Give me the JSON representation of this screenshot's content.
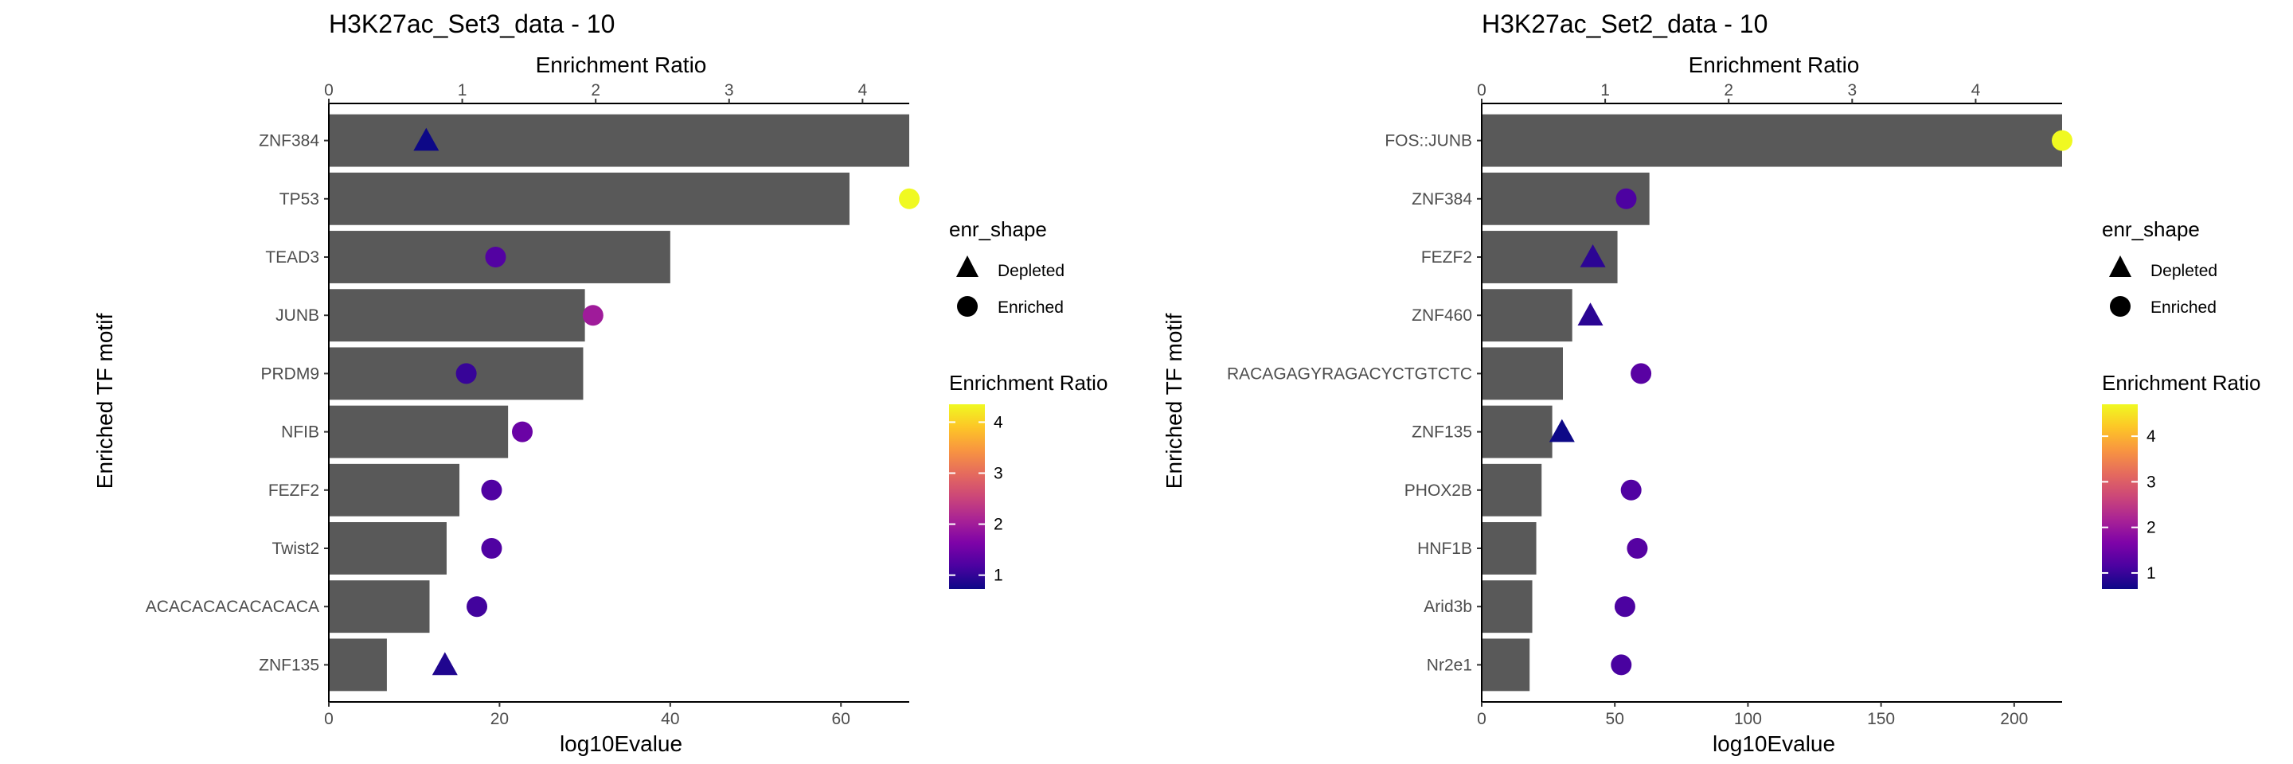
{
  "chart_data": [
    {
      "type": "bar",
      "title": "H3K27ac_Set3_data - 10",
      "xlabel": "log10Evalue",
      "ylabel": "Enriched TF motif",
      "top_xlabel": "Enrichment Ratio",
      "xlim": [
        0,
        68
      ],
      "xticks": [
        0,
        20,
        40,
        60
      ],
      "top_xlim": [
        0,
        4.35
      ],
      "top_xticks": [
        0,
        1,
        2,
        3,
        4
      ],
      "categories": [
        "ZNF384",
        "TP53",
        "TEAD3",
        "JUNB",
        "PRDM9",
        "NFIB",
        "FEZF2",
        "Twist2",
        "ACACACACACACACA",
        "ZNF135"
      ],
      "values": [
        68,
        61,
        40,
        30,
        29.8,
        21,
        15.3,
        13.8,
        11.8,
        6.8
      ],
      "enrichment_ratio": [
        0.73,
        4.35,
        1.25,
        1.98,
        1.03,
        1.45,
        1.22,
        1.22,
        1.11,
        0.87
      ],
      "enr_shape": [
        "Depleted",
        "Enriched",
        "Enriched",
        "Enriched",
        "Enriched",
        "Enriched",
        "Enriched",
        "Enriched",
        "Enriched",
        "Depleted"
      ],
      "legend": {
        "shape_title": "enr_shape",
        "shape_items": [
          "Depleted",
          "Enriched"
        ],
        "color_title": "Enrichment Ratio",
        "color_ticks": [
          1,
          2,
          3,
          4
        ],
        "color_range": [
          0.73,
          4.35
        ]
      }
    },
    {
      "type": "bar",
      "title": "H3K27ac_Set2_data - 10",
      "xlabel": "log10Evalue",
      "ylabel": "Enriched TF motif",
      "top_xlabel": "Enrichment Ratio",
      "xlim": [
        0,
        218
      ],
      "xticks": [
        0,
        50,
        100,
        150,
        200
      ],
      "top_xlim": [
        0,
        4.7
      ],
      "top_xticks": [
        0,
        1,
        2,
        3,
        4
      ],
      "categories": [
        "FOS::JUNB",
        "ZNF384",
        "FEZF2",
        "ZNF460",
        "RACAGAGYRAGACYCTGTCTC",
        "ZNF135",
        "PHOX2B",
        "HNF1B",
        "Arid3b",
        "Nr2e1"
      ],
      "values": [
        218,
        63,
        51,
        34,
        30.5,
        26.5,
        22.5,
        20.5,
        19,
        18
      ],
      "enrichment_ratio": [
        4.7,
        1.17,
        0.9,
        0.88,
        1.29,
        0.65,
        1.21,
        1.26,
        1.16,
        1.13
      ],
      "enr_shape": [
        "Enriched",
        "Enriched",
        "Depleted",
        "Depleted",
        "Enriched",
        "Depleted",
        "Enriched",
        "Enriched",
        "Enriched",
        "Enriched"
      ],
      "legend": {
        "shape_title": "enr_shape",
        "shape_items": [
          "Depleted",
          "Enriched"
        ],
        "color_title": "Enrichment Ratio",
        "color_ticks": [
          1,
          2,
          3,
          4
        ],
        "color_range": [
          0.65,
          4.7
        ]
      }
    }
  ]
}
